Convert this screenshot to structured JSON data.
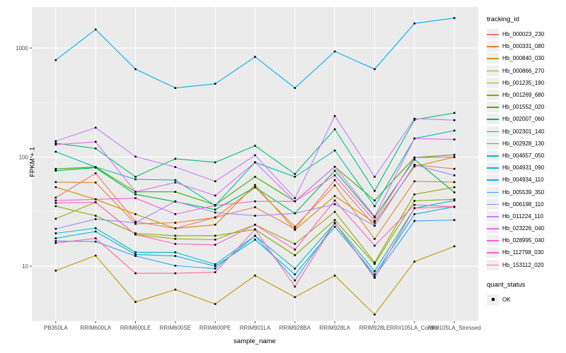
{
  "chart_data": {
    "type": "line",
    "title": "",
    "xlabel": "sample_name",
    "ylabel": "FPKM + 1",
    "y_scale": "log10",
    "y_ticks": [
      10,
      100,
      1000
    ],
    "y_minor_ticks": [
      3.162,
      31.62,
      316.2
    ],
    "grid": true,
    "legend_position": "right",
    "legend_title": "tracking_id",
    "point_marker": "black-square",
    "panel_bg": "#EBEBEB",
    "gridline_color": "#FFFFFF",
    "axis_text_color": "#4D4D4D",
    "x_categories": [
      "PB350LA",
      "RRIM600LA",
      "RRIM600LE",
      "RRIM600SE",
      "RRIM600PE",
      "RRIM901LA",
      "RRIM928BA",
      "RRIM928LA",
      "RRIM928LE",
      "RRII105LA_Control",
      "RRII105LA_Stressed"
    ],
    "series": [
      {
        "name": "Hb_000023_230",
        "color": "#F8766D",
        "values": [
          42.5,
          71,
          25.6,
          22.2,
          28,
          34.7,
          22,
          61.5,
          23.5,
          85,
          78
        ]
      },
      {
        "name": "Hb_000331_080",
        "color": "#EA8331",
        "values": [
          59,
          58.5,
          24.4,
          25,
          27.9,
          52.8,
          23,
          55,
          17.8,
          60,
          59
        ]
      },
      {
        "name": "Hb_000840_030",
        "color": "#D89000",
        "values": [
          53,
          41,
          30,
          22.2,
          24,
          55.5,
          21.5,
          44,
          25,
          82,
          100
        ]
      },
      {
        "name": "Hb_000866_270",
        "color": "#C09B00",
        "values": [
          9.1,
          12.5,
          4.7,
          6.1,
          4.5,
          8.2,
          5.2,
          8.2,
          3.6,
          11,
          15.2
        ]
      },
      {
        "name": "Hb_001235_190",
        "color": "#A3A500",
        "values": [
          27.2,
          38.5,
          19.5,
          17.8,
          17.5,
          24,
          16,
          31.5,
          10.8,
          45.5,
          53
        ]
      },
      {
        "name": "Hb_001269_680",
        "color": "#7CAE00",
        "values": [
          35.5,
          29,
          20,
          19,
          19,
          21.7,
          12.6,
          26.5,
          10.5,
          39.7,
          41
        ]
      },
      {
        "name": "Hb_001552_020",
        "color": "#39B600",
        "values": [
          78,
          81,
          48,
          48,
          36.4,
          66,
          39.3,
          81.5,
          40,
          99,
          105
        ]
      },
      {
        "name": "Hb_002007_060",
        "color": "#00BB4E",
        "values": [
          75,
          80,
          45.6,
          39,
          33,
          53,
          30.5,
          75,
          28,
          95,
          47.5
        ]
      },
      {
        "name": "Hb_002301_140",
        "color": "#00BF7D",
        "values": [
          134,
          120,
          66,
          96.5,
          89.5,
          127,
          70,
          180,
          49,
          220,
          254
        ]
      },
      {
        "name": "Hb_002928_130",
        "color": "#00C1A3",
        "values": [
          112,
          81,
          62.5,
          61.5,
          36,
          89.5,
          66,
          115,
          35.5,
          148,
          175
        ]
      },
      {
        "name": "Hb_004657_050",
        "color": "#00BFC4",
        "values": [
          20,
          22.3,
          13.4,
          13.4,
          10.4,
          19,
          9.5,
          24.8,
          9.0,
          34,
          40
        ]
      },
      {
        "name": "Hb_004931_090",
        "color": "#00BAE0",
        "values": [
          18,
          20.8,
          12.8,
          12.4,
          10,
          17.5,
          8.4,
          23,
          8.4,
          30,
          35
        ]
      },
      {
        "name": "Hb_004934_110",
        "color": "#00B0F6",
        "values": [
          775,
          1480,
          640,
          430,
          470,
          830,
          430,
          930,
          640,
          1680,
          1880
        ]
      },
      {
        "name": "Hb_005539_350",
        "color": "#35A2FF",
        "values": [
          17,
          16.8,
          12.4,
          10.1,
          9.5,
          19,
          7.4,
          24.8,
          8.0,
          26,
          26.5
        ]
      },
      {
        "name": "Hb_006198_110",
        "color": "#9590FF",
        "values": [
          22,
          27,
          25,
          39.3,
          31,
          29,
          30.5,
          37,
          23.5,
          85,
          68
        ]
      },
      {
        "name": "Hb_011224_110",
        "color": "#C77CFF",
        "values": [
          140,
          186,
          101,
          81,
          60,
          104,
          42,
          238,
          66,
          225,
          218
        ]
      },
      {
        "name": "Hb_023226_040",
        "color": "#E76BF3",
        "values": [
          130,
          138,
          48,
          58.5,
          44.4,
          89.5,
          39.3,
          81.5,
          28.5,
          148,
          145
        ]
      },
      {
        "name": "Hb_028995_040",
        "color": "#FA62DB",
        "values": [
          40,
          41,
          42,
          30,
          36,
          39.3,
          39.3,
          68,
          26,
          99,
          100
        ]
      },
      {
        "name": "Hb_112798_030",
        "color": "#FF61C9",
        "values": [
          38,
          38.5,
          19.5,
          16,
          15.7,
          24,
          14.2,
          40,
          15.4,
          36.5,
          35
        ]
      },
      {
        "name": "Hb_153112_020",
        "color": "#FF67A4",
        "values": [
          16.3,
          18,
          8.6,
          8.6,
          8.8,
          21.7,
          6.5,
          25,
          7.8,
          34,
          35
        ]
      }
    ],
    "quant_legend": {
      "title": "quant_status",
      "items": [
        "OK"
      ]
    }
  }
}
